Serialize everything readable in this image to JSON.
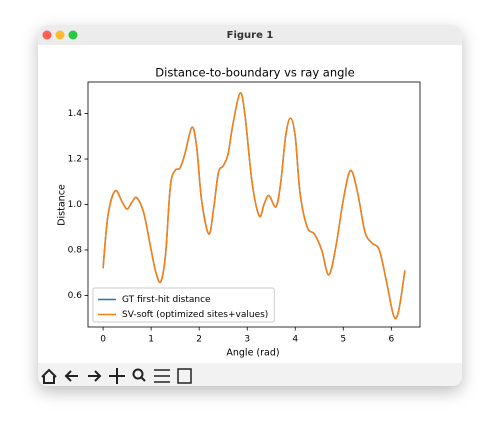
{
  "window": {
    "title": "Figure 1"
  },
  "chart_data": {
    "type": "line",
    "title": "Distance-to-boundary vs ray angle",
    "xlabel": "Angle (rad)",
    "ylabel": "Distance",
    "x": [
      0,
      0.1,
      0.25,
      0.4,
      0.5,
      0.6,
      0.7,
      0.85,
      1.0,
      1.1,
      1.2,
      1.3,
      1.4,
      1.5,
      1.6,
      1.7,
      1.85,
      1.95,
      2.05,
      2.2,
      2.3,
      2.4,
      2.5,
      2.6,
      2.7,
      2.85,
      2.95,
      3.1,
      3.25,
      3.35,
      3.45,
      3.6,
      3.7,
      3.8,
      3.9,
      4.0,
      4.1,
      4.25,
      4.4,
      4.55,
      4.7,
      4.85,
      5.0,
      5.15,
      5.3,
      5.45,
      5.6,
      5.75,
      5.9,
      6.05,
      6.15,
      6.283
    ],
    "series": [
      {
        "name": "GT first-hit distance",
        "color": "#1f77b4",
        "values": [
          0.72,
          0.95,
          1.06,
          1.01,
          0.98,
          1.01,
          1.03,
          0.96,
          0.8,
          0.7,
          0.66,
          0.78,
          1.08,
          1.15,
          1.16,
          1.22,
          1.34,
          1.25,
          1.02,
          0.87,
          0.98,
          1.14,
          1.17,
          1.22,
          1.35,
          1.49,
          1.4,
          1.1,
          0.95,
          1.0,
          1.04,
          0.99,
          1.1,
          1.3,
          1.38,
          1.3,
          1.05,
          0.9,
          0.87,
          0.8,
          0.69,
          0.82,
          1.02,
          1.15,
          1.05,
          0.88,
          0.83,
          0.8,
          0.66,
          0.51,
          0.53,
          0.71
        ]
      },
      {
        "name": "SV-soft (optimized sites+values)",
        "color": "#ff7f0e",
        "values": [
          0.72,
          0.95,
          1.06,
          1.01,
          0.98,
          1.01,
          1.03,
          0.96,
          0.8,
          0.7,
          0.66,
          0.78,
          1.08,
          1.15,
          1.16,
          1.22,
          1.34,
          1.25,
          1.02,
          0.87,
          0.98,
          1.14,
          1.17,
          1.22,
          1.35,
          1.49,
          1.4,
          1.1,
          0.95,
          1.0,
          1.04,
          0.99,
          1.1,
          1.3,
          1.38,
          1.3,
          1.05,
          0.9,
          0.87,
          0.8,
          0.69,
          0.82,
          1.02,
          1.15,
          1.05,
          0.88,
          0.83,
          0.8,
          0.66,
          0.51,
          0.53,
          0.71
        ]
      }
    ],
    "xlim": [
      -0.314,
      6.597
    ],
    "xticks": [
      0,
      1,
      2,
      3,
      4,
      5,
      6
    ],
    "ylim": [
      0.461,
      1.539
    ],
    "yticks": [
      0.6,
      0.8,
      {
        "value": 1,
        "label": "1.0"
      },
      1.2,
      1.4
    ],
    "legend": "lower left"
  }
}
